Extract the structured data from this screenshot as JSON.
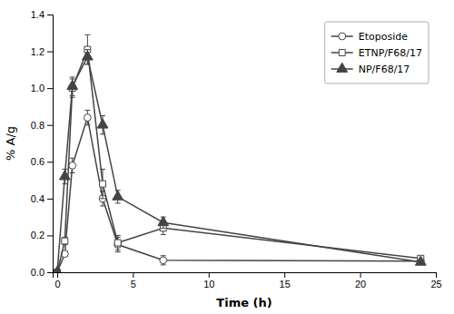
{
  "chart_data": {
    "type": "line",
    "xlabel": "Time (h)",
    "ylabel": "% A/g",
    "xlim": [
      -0.3,
      25
    ],
    "ylim": [
      0,
      1.4
    ],
    "xticks": [
      0,
      5,
      10,
      15,
      20,
      25
    ],
    "yticks": [
      {
        "value": 0.0,
        "label": "0.0"
      },
      0.2,
      0.4,
      0.6,
      0.8,
      {
        "value": 1.0,
        "label": "1.0"
      },
      1.2,
      1.4
    ],
    "x": [
      0,
      0.5,
      1,
      2,
      3,
      4,
      7,
      24
    ],
    "legend": "upper right",
    "series": [
      {
        "name": "Etoposide",
        "color": "#444444",
        "marker": "circle-open",
        "line_style": "solid",
        "values": [
          0.0,
          0.1,
          0.58,
          0.84,
          0.4,
          0.15,
          0.065,
          0.06
        ],
        "errors": [
          0.0,
          0.015,
          0.04,
          0.04,
          0.04,
          0.04,
          0.025,
          0.01
        ]
      },
      {
        "name": "ETNP/F68/17",
        "color": "#444444",
        "marker": "square-open",
        "line_style": "solid",
        "values": [
          0.0,
          0.17,
          1.0,
          1.21,
          0.48,
          0.16,
          0.24,
          0.075
        ],
        "errors": [
          0.0,
          0.02,
          0.05,
          0.08,
          0.08,
          0.04,
          0.035,
          0.01
        ]
      },
      {
        "name": "NP/F68/17",
        "color": "#444444",
        "marker": "triangle",
        "line_style": "solid",
        "values": [
          0.0,
          0.52,
          1.01,
          1.17,
          0.8,
          0.41,
          0.27,
          0.055
        ],
        "errors": [
          0.0,
          0.04,
          0.05,
          0.04,
          0.05,
          0.035,
          0.03,
          0.01
        ]
      }
    ]
  }
}
